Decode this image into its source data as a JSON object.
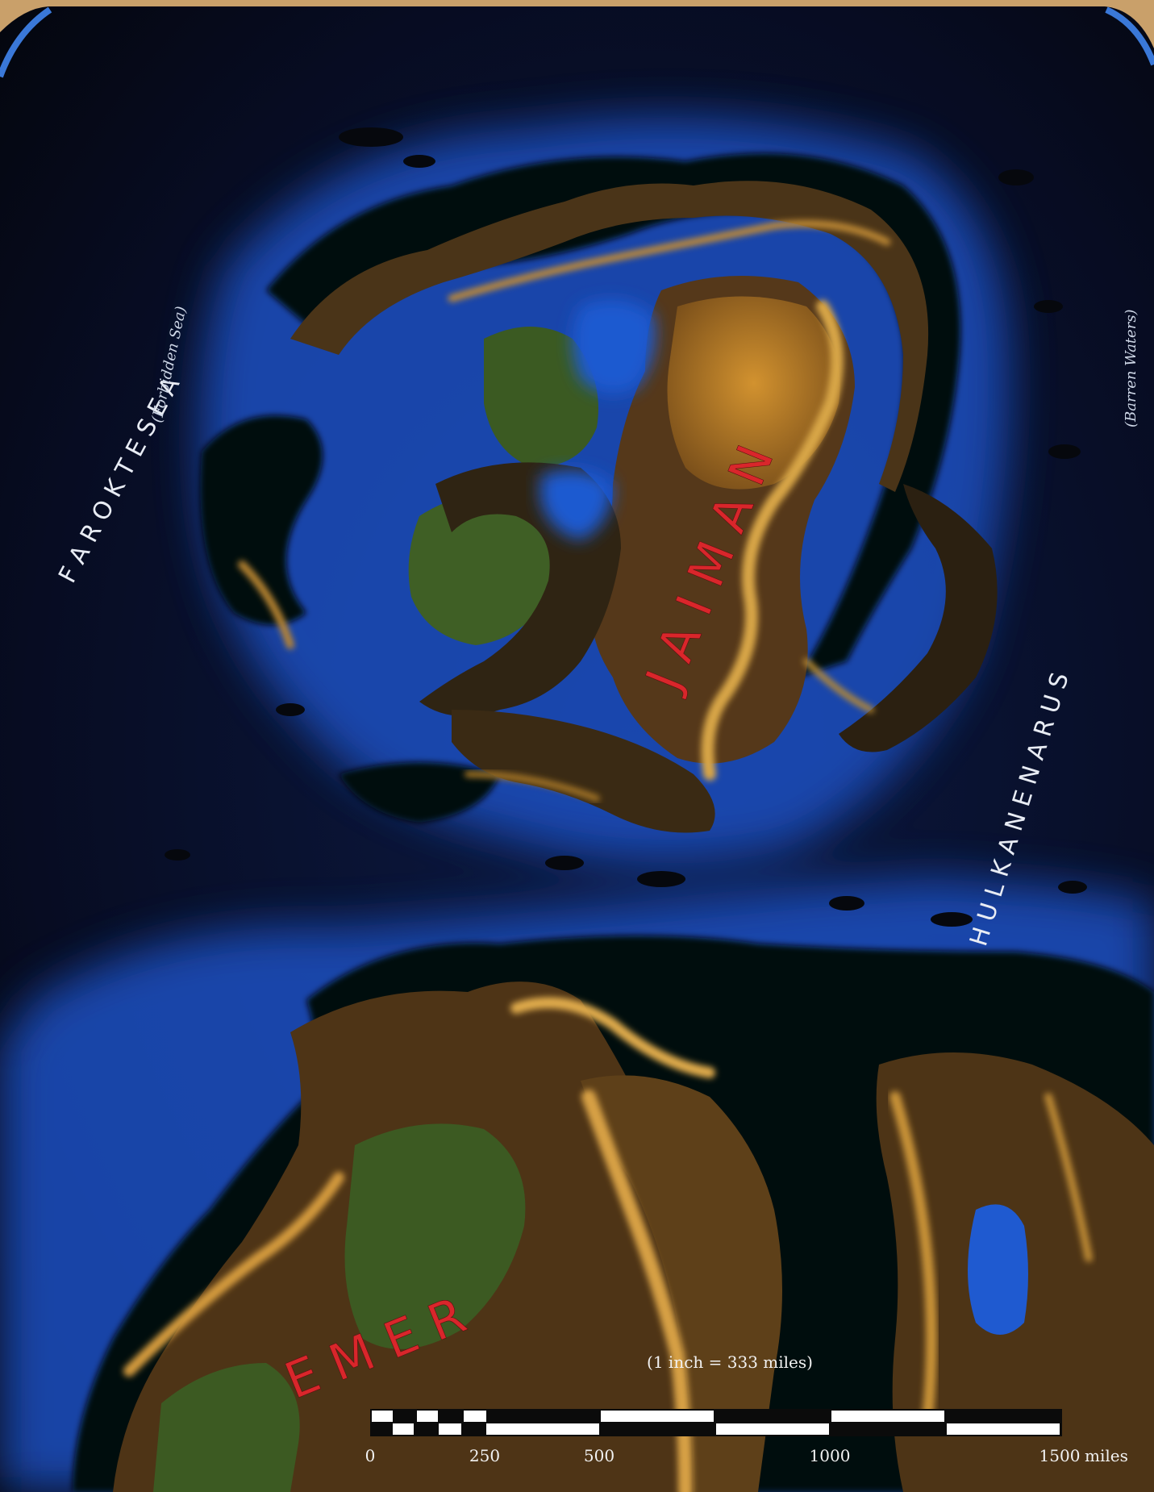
{
  "map": {
    "seas": [
      {
        "id": "farok-tesea",
        "name": "F A R O K   T E S E A",
        "subtitle": "(Forbidden Sea)"
      },
      {
        "id": "hulkanen-arus",
        "name": "H U L K A N E N   A R U S",
        "subtitle": "(Barren Waters)"
      }
    ],
    "lands": [
      {
        "id": "jaiman",
        "name": "J A I M A N"
      },
      {
        "id": "emer",
        "name": "E M E R"
      }
    ],
    "scale": {
      "note": "(1 inch = 333 miles)",
      "ticks": [
        "0",
        "250",
        "500",
        "1000",
        "1500"
      ],
      "unit": "miles"
    },
    "colors": {
      "deep_sea": "#05070f",
      "shallow_sea": "#1d4fc0",
      "lowland": "#3f5a24",
      "highland": "#6b4a1c",
      "mountain": "#d9a040",
      "label_red": "#d9262b",
      "border": "#c9a06a"
    }
  }
}
